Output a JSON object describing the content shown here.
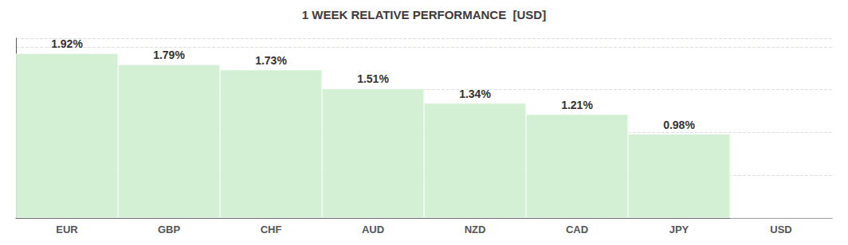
{
  "chart_data": {
    "type": "bar",
    "title": "1 WEEK RELATIVE PERFORMANCE  [USD]",
    "categories": [
      "EUR",
      "GBP",
      "CHF",
      "AUD",
      "NZD",
      "CAD",
      "JPY",
      "USD"
    ],
    "values": [
      1.92,
      1.79,
      1.73,
      1.51,
      1.34,
      1.21,
      0.98,
      0.0
    ],
    "value_labels": [
      "1.92%",
      "1.79%",
      "1.73%",
      "1.51%",
      "1.34%",
      "1.21%",
      "0.98%",
      ""
    ],
    "color": "#d4f0d4",
    "ylim": [
      0,
      2.1
    ],
    "yticks": [
      0,
      0.5,
      1,
      1.5,
      2
    ],
    "grid": true,
    "data_labels": true,
    "tick_labels": "x"
  }
}
